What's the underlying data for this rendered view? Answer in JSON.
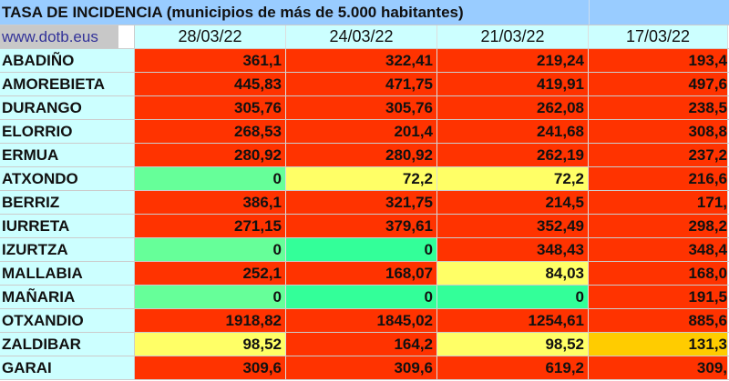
{
  "title": "TASA DE INCIDENCIA  (municipios de más de 5.000 habitantes)",
  "website": "www.dotb.eus",
  "dates": [
    "28/03/22",
    "24/03/22",
    "21/03/22",
    "17/03/22"
  ],
  "colors": {
    "red": "#ff3300",
    "green_light": "#66ff99",
    "green": "#33ff99",
    "yellow": "#ffff66",
    "orange": "#ffcc00"
  },
  "rows": [
    {
      "name": "ABADIÑO",
      "values": [
        "361,1",
        "322,41",
        "219,24",
        "193,4"
      ],
      "colors": [
        "red",
        "red",
        "red",
        "red"
      ]
    },
    {
      "name": "AMOREBIETA",
      "values": [
        "445,83",
        "471,75",
        "419,91",
        "497,6"
      ],
      "colors": [
        "red",
        "red",
        "red",
        "red"
      ]
    },
    {
      "name": "DURANGO",
      "values": [
        "305,76",
        "305,76",
        "262,08",
        "238,5"
      ],
      "colors": [
        "red",
        "red",
        "red",
        "red"
      ]
    },
    {
      "name": "ELORRIO",
      "values": [
        "268,53",
        "201,4",
        "241,68",
        "308,8"
      ],
      "colors": [
        "red",
        "red",
        "red",
        "red"
      ]
    },
    {
      "name": "ERMUA",
      "values": [
        "280,92",
        "280,92",
        "262,19",
        "237,2"
      ],
      "colors": [
        "red",
        "red",
        "red",
        "red"
      ]
    },
    {
      "name": "ATXONDO",
      "values": [
        "0",
        "72,2",
        "72,2",
        "216,6"
      ],
      "colors": [
        "g1",
        "y",
        "y",
        "red"
      ]
    },
    {
      "name": "BERRIZ",
      "values": [
        "386,1",
        "321,75",
        "214,5",
        "171,"
      ],
      "colors": [
        "red",
        "red",
        "red",
        "red"
      ]
    },
    {
      "name": "IURRETA",
      "values": [
        "271,15",
        "379,61",
        "352,49",
        "298,2"
      ],
      "colors": [
        "red",
        "red",
        "red",
        "red"
      ]
    },
    {
      "name": "IZURTZA",
      "values": [
        "0",
        "0",
        "348,43",
        "348,4"
      ],
      "colors": [
        "g1",
        "g2",
        "red",
        "red"
      ]
    },
    {
      "name": "MALLABIA",
      "values": [
        "252,1",
        "168,07",
        "84,03",
        "168,0"
      ],
      "colors": [
        "red",
        "red",
        "y",
        "red"
      ]
    },
    {
      "name": "MAÑARIA",
      "values": [
        "0",
        "0",
        "0",
        "191,5"
      ],
      "colors": [
        "g1",
        "g2",
        "g2",
        "red"
      ]
    },
    {
      "name": "OTXANDIO",
      "values": [
        "1918,82",
        "1845,02",
        "1254,61",
        "885,6"
      ],
      "colors": [
        "red",
        "red",
        "red",
        "red"
      ]
    },
    {
      "name": "ZALDIBAR",
      "values": [
        "98,52",
        "164,2",
        "98,52",
        "131,3"
      ],
      "colors": [
        "y",
        "red",
        "y",
        "o"
      ]
    },
    {
      "name": "GARAI",
      "values": [
        "309,6",
        "309,6",
        "619,2",
        "309,"
      ],
      "colors": [
        "red",
        "red",
        "red",
        "red"
      ]
    }
  ]
}
